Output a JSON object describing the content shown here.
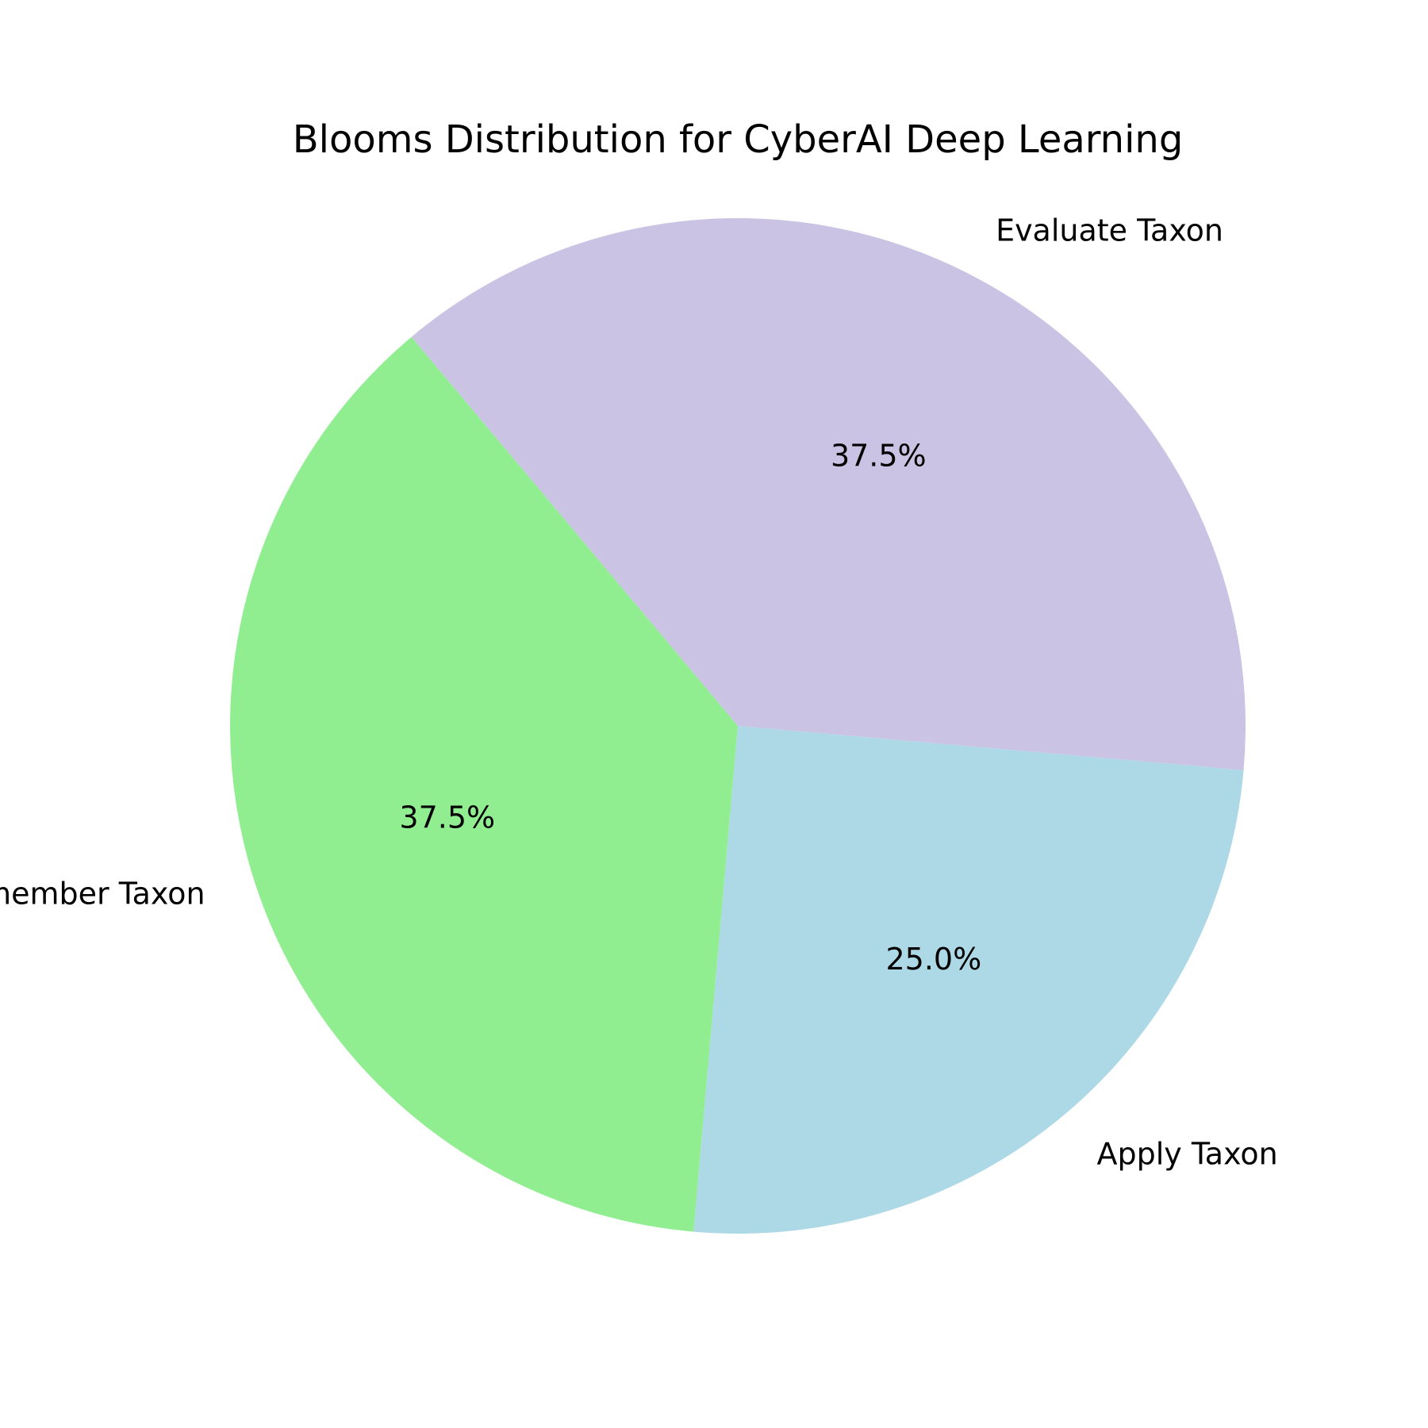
{
  "chart_data": {
    "type": "pie",
    "title": "Blooms Distribution for CyberAI Deep Learning",
    "slices": [
      {
        "label": "Apply Taxon",
        "value": 25.0,
        "pct_label": "25.0%",
        "color": "#add8e6"
      },
      {
        "label": "Evaluate Taxon",
        "value": 37.5,
        "pct_label": "37.5%",
        "color": "#cbc3e3"
      },
      {
        "label": "Remember Taxon",
        "value": 37.5,
        "pct_label": "37.5%",
        "color": "#90ee90"
      }
    ],
    "start_angle_deg": -95,
    "direction": "counterclockwise"
  }
}
